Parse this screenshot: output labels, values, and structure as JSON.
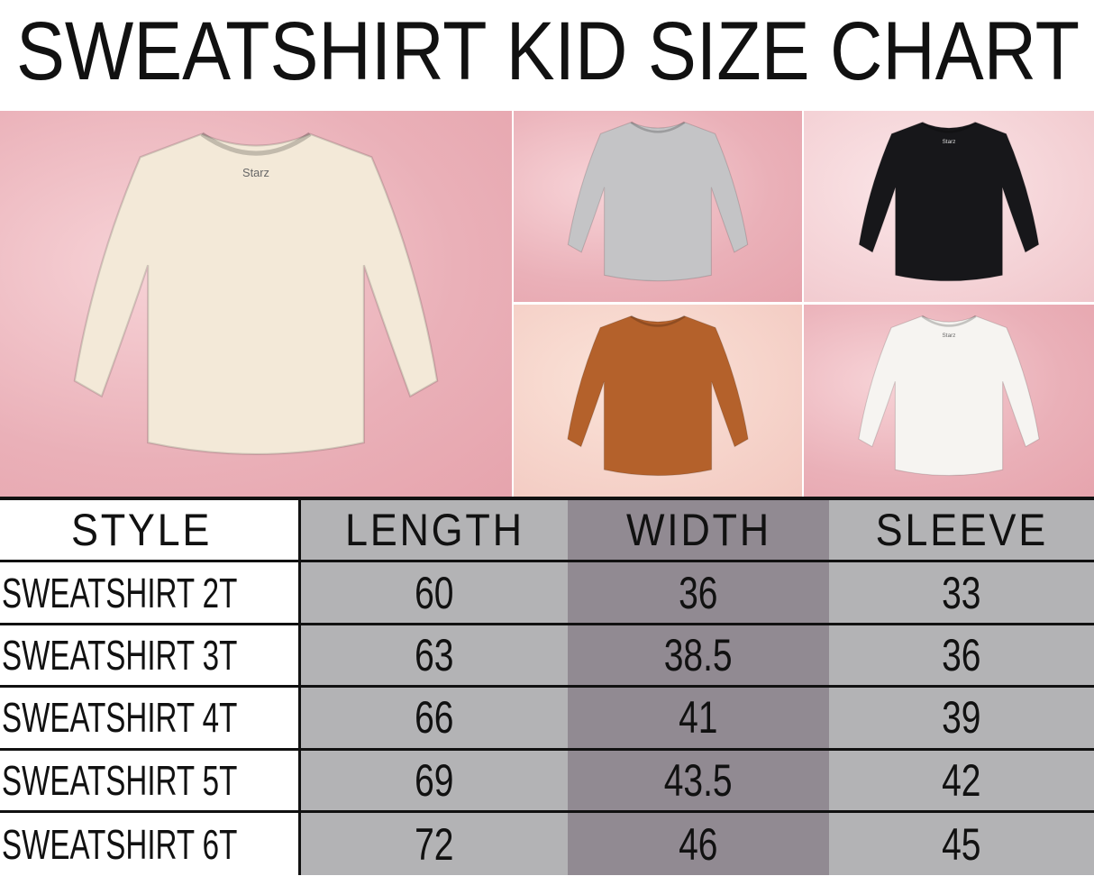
{
  "title": "SWEATSHIRT KID SIZE CHART",
  "photos": [
    {
      "name": "cream",
      "color": "#f3e9d8",
      "logo": "Starz"
    },
    {
      "name": "grey",
      "color": "#c4c4c6"
    },
    {
      "name": "black",
      "color": "#17171a",
      "logo": "Starz"
    },
    {
      "name": "rust",
      "color": "#b4612b"
    },
    {
      "name": "white",
      "color": "#f6f4f1",
      "logo": "Starz"
    }
  ],
  "table": {
    "headers": [
      "STYLE",
      "LENGTH",
      "WIDTH",
      "SLEEVE"
    ],
    "rows": [
      [
        "SWEATSHIRT 2T",
        "60",
        "36",
        "33"
      ],
      [
        "SWEATSHIRT 3T",
        "63",
        "38.5",
        "36"
      ],
      [
        "SWEATSHIRT 4T",
        "66",
        "41",
        "39"
      ],
      [
        "SWEATSHIRT 5T",
        "69",
        "43.5",
        "42"
      ],
      [
        "SWEATSHIRT 6T",
        "72",
        "46",
        "45"
      ]
    ]
  },
  "colors": {
    "column_light": "#b3b3b5",
    "column_dark": "#918a92",
    "border": "#111111"
  }
}
